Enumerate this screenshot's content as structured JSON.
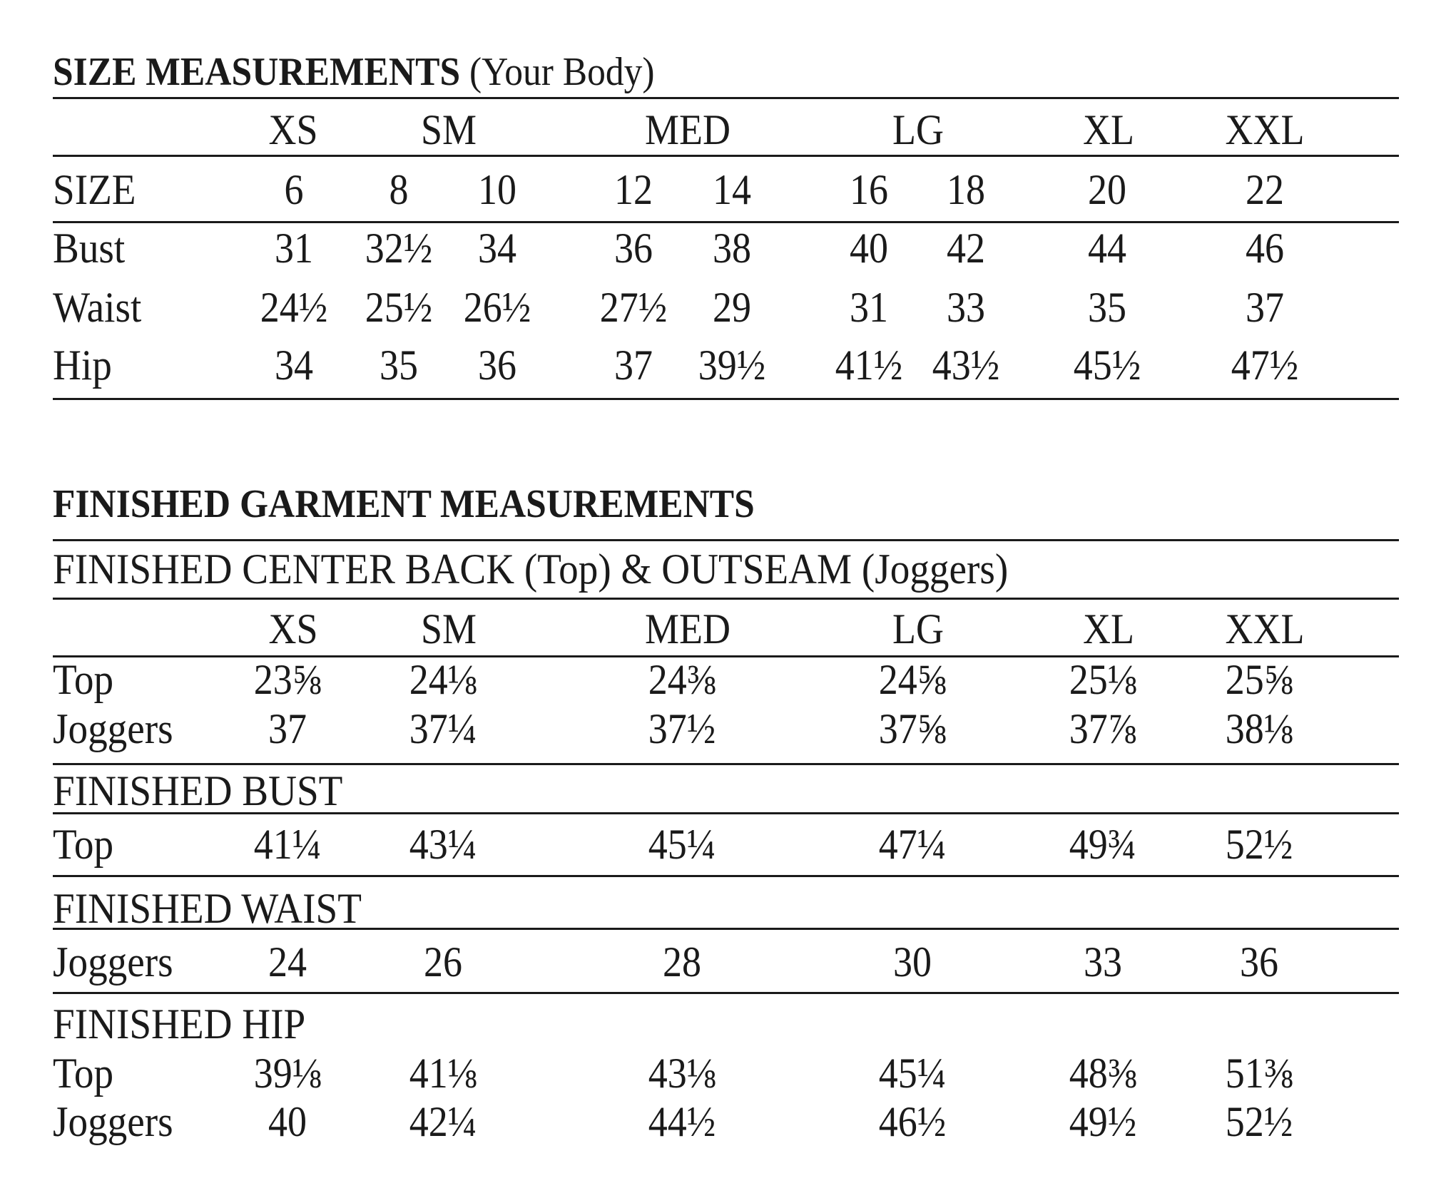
{
  "size_section": {
    "title": "SIZE MEASUREMENTS",
    "subtitle": "(Your Body)",
    "size_groups": [
      "XS",
      "SM",
      "MED",
      "LG",
      "XL",
      "XXL"
    ],
    "size_row": {
      "label": "SIZE",
      "values": [
        "6",
        "8",
        "10",
        "12",
        "14",
        "16",
        "18",
        "20",
        "22"
      ]
    },
    "rows": [
      {
        "label": "Bust",
        "values": [
          "31",
          "32½",
          "34",
          "36",
          "38",
          "40",
          "42",
          "44",
          "46"
        ]
      },
      {
        "label": "Waist",
        "values": [
          "24½",
          "25½",
          "26½",
          "27½",
          "29",
          "31",
          "33",
          "35",
          "37"
        ]
      },
      {
        "label": "Hip",
        "values": [
          "34",
          "35",
          "36",
          "37",
          "39½",
          "41½",
          "43½",
          "45½",
          "47½"
        ]
      }
    ]
  },
  "garment_section": {
    "title": "FINISHED GARMENT MEASUREMENTS",
    "size_groups": [
      "XS",
      "SM",
      "MED",
      "LG",
      "XL",
      "XXL"
    ],
    "groups": [
      {
        "label": "FINISHED CENTER BACK (Top) & OUTSEAM (Joggers)",
        "rows": [
          {
            "label": "Top",
            "values": [
              "23⅝",
              "24⅛",
              "24⅜",
              "24⅝",
              "25⅛",
              "25⅝"
            ]
          },
          {
            "label": "Joggers",
            "values": [
              "37",
              "37¼",
              "37½",
              "37⅝",
              "37⅞",
              "38⅛"
            ]
          }
        ]
      },
      {
        "label": "FINISHED BUST",
        "rows": [
          {
            "label": "Top",
            "values": [
              "41¼",
              "43¼",
              "45¼",
              "47¼",
              "49¾",
              "52½"
            ]
          }
        ]
      },
      {
        "label": "FINISHED WAIST",
        "rows": [
          {
            "label": "Joggers",
            "values": [
              "24",
              "26",
              "28",
              "30",
              "33",
              "36"
            ]
          }
        ]
      },
      {
        "label": "FINISHED HIP",
        "rows": [
          {
            "label": "Top",
            "values": [
              "39⅛",
              "41⅛",
              "43⅛",
              "45¼",
              "48⅜",
              "51⅜"
            ]
          },
          {
            "label": "Joggers",
            "values": [
              "40",
              "42¼",
              "44½",
              "46½",
              "49½",
              "52½"
            ]
          }
        ]
      }
    ]
  }
}
